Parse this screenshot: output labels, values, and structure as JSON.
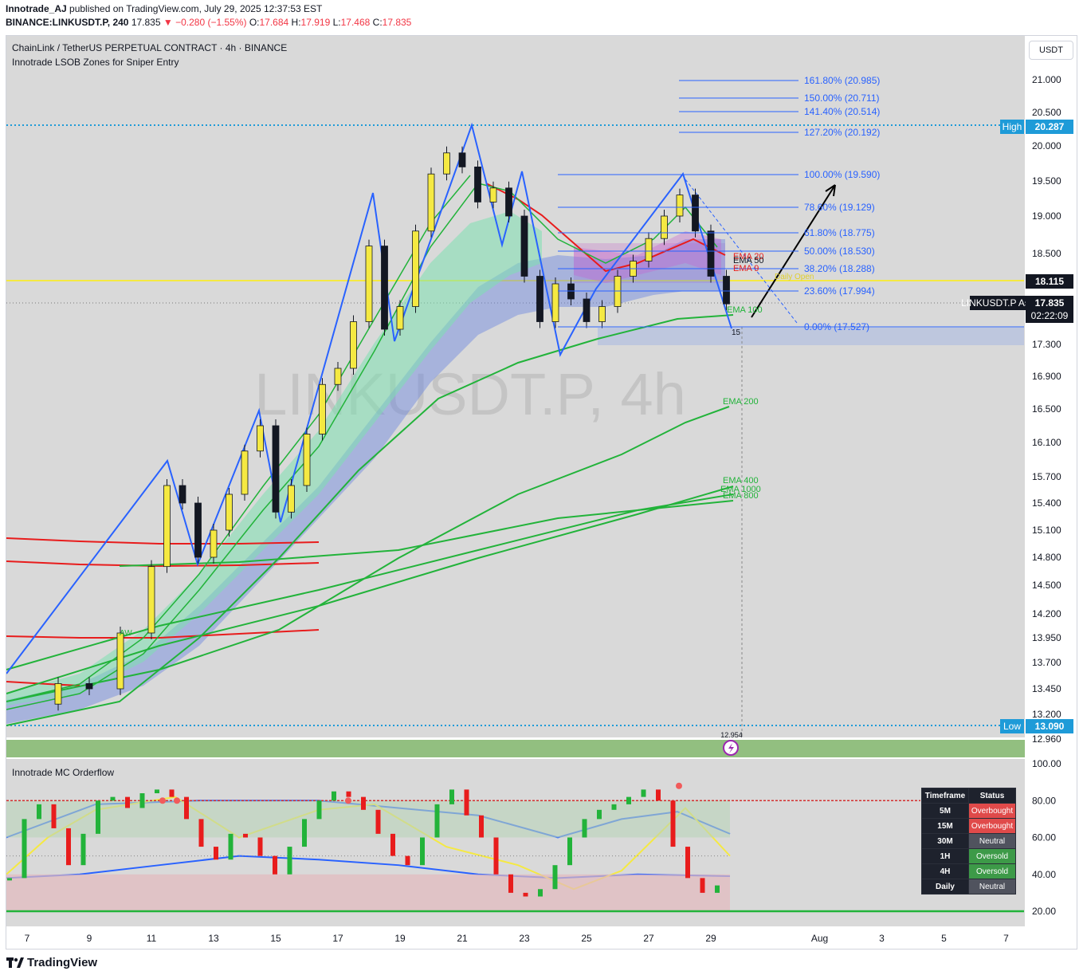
{
  "header": {
    "publisher": "Innotrade_AJ",
    "published_on": "published on TradingView.com, July 29, 2025 12:37:53 EST",
    "symbol_line": "BINANCE:LINKUSDT.P, 240",
    "price": "17.835",
    "change": "▼ −0.280 (−1.55%)",
    "o_label": "O:",
    "o": "17.684",
    "h_label": "H:",
    "h": "17.919",
    "l_label": "L:",
    "l": "17.468",
    "c_label": "C:",
    "c": "17.835"
  },
  "legend": {
    "title": "ChainLink / TetherUS PERPETUAL CONTRACT · 4h · BINANCE",
    "indicator": "Innotrade LSOB Zones for Sniper Entry",
    "watermark": "LINKUSDT.P, 4h",
    "currency_button": "USDT"
  },
  "colors": {
    "up": "#f5e942",
    "down": "#131722",
    "fib": "#2962ff",
    "ema_green": "#22b33a",
    "ema_red": "#e81c1c",
    "bg": "#d9d9d9"
  },
  "chart_data": [
    {
      "type": "line",
      "title": "ChainLink / TetherUS PERPETUAL CONTRACT · 4h · BINANCE",
      "y_ticks": [
        "21.000",
        "20.500",
        "20.000",
        "19.500",
        "19.000",
        "18.500",
        "17.300",
        "16.900",
        "16.500",
        "16.100",
        "15.700",
        "15.400",
        "15.100",
        "14.800",
        "14.500",
        "14.200",
        "13.950",
        "13.700",
        "13.450",
        "13.200",
        "12.960"
      ],
      "x_ticks": [
        "7",
        "9",
        "11",
        "13",
        "15",
        "17",
        "19",
        "21",
        "23",
        "25",
        "27",
        "29",
        "Aug",
        "3",
        "5",
        "7"
      ],
      "price_markers": {
        "high_label": "High",
        "high": "20.287",
        "low_label": "Low",
        "low": "13.090",
        "last_ask_label": "LINKUSDT.P Ask",
        "last": "17.835",
        "countdown": "02:22:09",
        "daily_open": "18.115",
        "swing_low_label": "12.954"
      },
      "fib_levels": [
        "161.80% (20.985)",
        "150.00% (20.711)",
        "141.40% (20.514)",
        "127.20% (20.192)",
        "100.00% (19.590)",
        "78.60% (19.129)",
        "61.80% (18.775)",
        "50.00% (18.530)",
        "38.20% (18.288)",
        "23.60% (17.994)",
        "0.00% (17.527)"
      ],
      "ema_labels": [
        "EMA 20",
        "EMA 50",
        "EMA 9",
        "EMA 100",
        "EMA 200",
        "EMA 400",
        "EMA 1000",
        "EMA 800"
      ],
      "annotations": [
        "Daily Open",
        "15",
        "AW"
      ],
      "close_path": {
        "x": [
          7,
          8,
          9,
          10,
          11,
          11.5,
          12,
          12.5,
          13,
          13.5,
          14,
          14.5,
          15,
          15.5,
          16,
          16.5,
          17,
          17.5,
          18,
          18.5,
          19,
          19.5,
          20,
          20.5,
          21,
          21.5,
          22,
          22.5,
          23,
          23.5,
          24,
          24.5,
          25,
          25.5,
          26,
          26.5,
          27,
          27.5,
          28,
          28.5,
          29,
          29.5
        ],
        "y": [
          13.3,
          13.5,
          13.45,
          14.0,
          14.7,
          15.6,
          15.4,
          14.8,
          15.1,
          15.5,
          16.0,
          16.3,
          15.3,
          15.6,
          16.2,
          16.8,
          17.0,
          17.6,
          18.6,
          17.5,
          17.8,
          18.8,
          19.6,
          19.9,
          19.7,
          19.2,
          19.4,
          19.0,
          18.2,
          17.6,
          18.1,
          17.9,
          17.6,
          17.8,
          18.2,
          18.4,
          18.7,
          19.0,
          19.3,
          18.8,
          18.2,
          17.835
        ]
      }
    },
    {
      "type": "line",
      "title": "Innotrade MC Orderflow",
      "y_ticks": [
        "100.00",
        "80.00",
        "60.00",
        "40.00",
        "20.00"
      ],
      "status_table": {
        "headers": [
          "Timeframe",
          "Status"
        ],
        "rows": [
          [
            "5M",
            "Overbought"
          ],
          [
            "15M",
            "Overbought"
          ],
          [
            "30M",
            "Neutral"
          ],
          [
            "1H",
            "Oversold"
          ],
          [
            "4H",
            "Oversold"
          ],
          [
            "Daily",
            "Neutral"
          ]
        ]
      }
    }
  ],
  "footer": {
    "brand": "TradingView"
  }
}
